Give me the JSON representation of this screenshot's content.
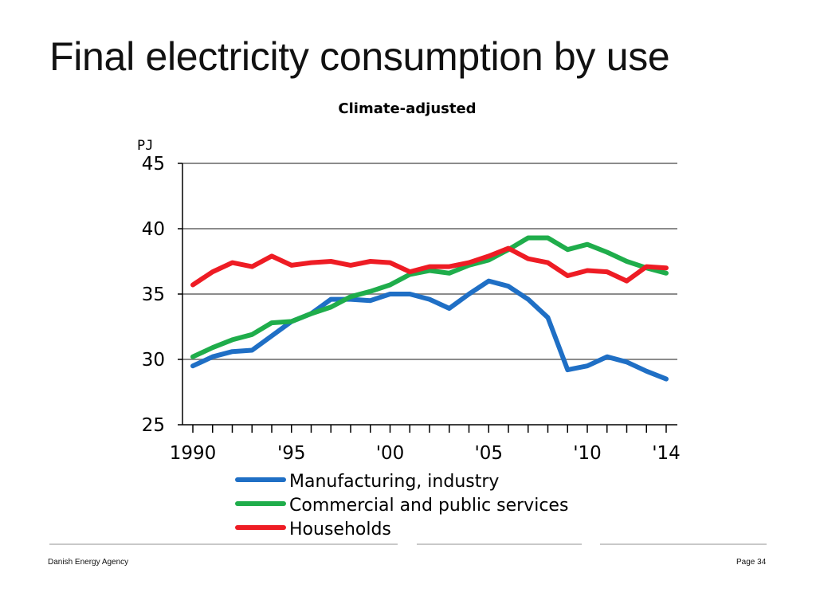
{
  "slide": {
    "title": "Final electricity consumption by use",
    "footer_left": "Danish Energy Agency",
    "footer_right": "Page 34"
  },
  "chart_data": {
    "type": "line",
    "title": "Climate-adjusted",
    "ylabel": "PJ",
    "xlabel": "",
    "ylim": [
      25,
      45
    ],
    "yticks": [
      25,
      30,
      35,
      40,
      45
    ],
    "xlim": [
      1990,
      2014
    ],
    "xtick_values": [
      1990,
      1995,
      2000,
      2005,
      2010,
      2014
    ],
    "xtick_labels": [
      "1990",
      "'95",
      "'00",
      "'05",
      "'10",
      "'14"
    ],
    "grid": true,
    "legend_position": "bottom",
    "x": [
      1990,
      1991,
      1992,
      1993,
      1994,
      1995,
      1996,
      1997,
      1998,
      1999,
      2000,
      2001,
      2002,
      2003,
      2004,
      2005,
      2006,
      2007,
      2008,
      2009,
      2010,
      2011,
      2012,
      2013,
      2014
    ],
    "series": [
      {
        "name": "Manufacturing, industry",
        "color": "#1f6fc5",
        "values": [
          29.5,
          30.2,
          30.6,
          30.7,
          31.8,
          32.9,
          33.5,
          34.6,
          34.6,
          34.5,
          35.0,
          35.0,
          34.6,
          33.9,
          35.0,
          36.0,
          35.6,
          34.6,
          33.2,
          29.2,
          29.5,
          30.2,
          29.8,
          29.1,
          28.5
        ]
      },
      {
        "name": "Commercial and public services",
        "color": "#1fad4b",
        "values": [
          30.2,
          30.9,
          31.5,
          31.9,
          32.8,
          32.9,
          33.5,
          34.0,
          34.8,
          35.2,
          35.7,
          36.5,
          36.8,
          36.6,
          37.2,
          37.6,
          38.4,
          39.3,
          39.3,
          38.4,
          38.8,
          38.2,
          37.5,
          37.0,
          36.6
        ]
      },
      {
        "name": "Households",
        "color": "#ee1c24",
        "values": [
          35.7,
          36.7,
          37.4,
          37.1,
          37.9,
          37.2,
          37.4,
          37.5,
          37.2,
          37.5,
          37.4,
          36.7,
          37.1,
          37.1,
          37.4,
          37.9,
          38.5,
          37.7,
          37.4,
          36.4,
          36.8,
          36.7,
          36.0,
          37.1,
          37.0
        ]
      }
    ]
  }
}
